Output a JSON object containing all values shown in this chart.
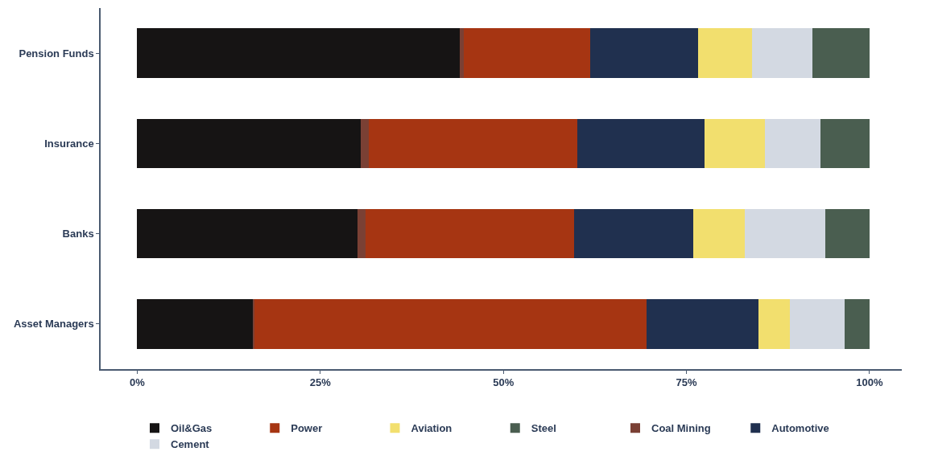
{
  "chart_data": {
    "type": "bar",
    "orientation": "horizontal",
    "stacked": true,
    "categories": [
      "Pension Funds",
      "Insurance",
      "Banks",
      "Asset Managers"
    ],
    "series": [
      {
        "name": "Oil&Gas",
        "color": "#161414",
        "values": [
          44.0,
          30.5,
          30.1,
          15.8
        ]
      },
      {
        "name": "Coal Mining",
        "color": "#7a4034",
        "values": [
          0.6,
          1.1,
          1.1,
          0.2
        ]
      },
      {
        "name": "Power",
        "color": "#a63512",
        "values": [
          17.2,
          28.5,
          28.4,
          53.6
        ]
      },
      {
        "name": "Automotive",
        "color": "#20304f",
        "values": [
          14.8,
          17.4,
          16.3,
          15.2
        ]
      },
      {
        "name": "Aviation",
        "color": "#f2df6e",
        "values": [
          7.3,
          8.2,
          7.1,
          4.3
        ]
      },
      {
        "name": "Cement",
        "color": "#d3d9e2",
        "values": [
          8.3,
          7.6,
          10.9,
          7.5
        ]
      },
      {
        "name": "Steel",
        "color": "#4a5e50",
        "values": [
          7.8,
          6.7,
          6.1,
          3.4
        ]
      }
    ],
    "xlim": [
      -5,
      104.4
    ],
    "xticks": [
      {
        "value": 0,
        "label": "0%"
      },
      {
        "value": 25,
        "label": "25%"
      },
      {
        "value": 50,
        "label": "50%"
      },
      {
        "value": 75,
        "label": "75%"
      },
      {
        "value": 100,
        "label": "100%"
      }
    ],
    "legend": "bottom"
  }
}
